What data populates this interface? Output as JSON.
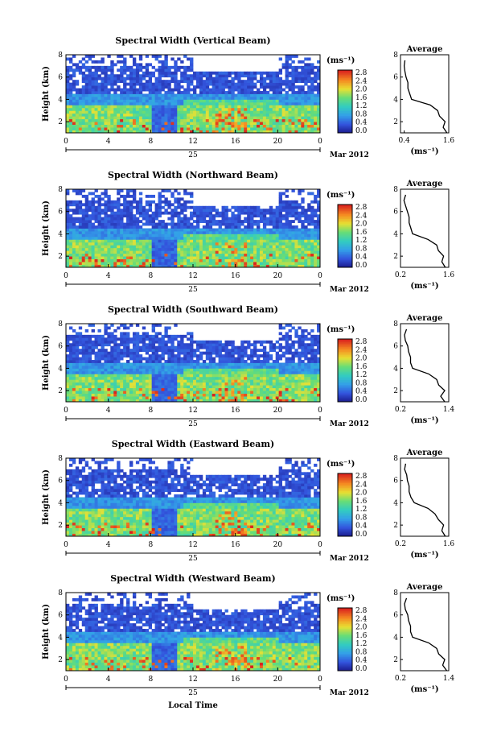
{
  "figure": {
    "xlabel": "Local Time",
    "date_day": "25",
    "date_label": "Mar 2012",
    "ylabel": "Height (km)",
    "cbar_unit": "(ms⁻¹)",
    "avg_title": "Average",
    "avg_xlabel": "(ms⁻¹)"
  },
  "chart_data": [
    {
      "type": "heatmap",
      "title": "Spectral Width (Vertical Beam)",
      "x_ticks": [
        "0",
        "4",
        "8",
        "12",
        "16",
        "20",
        "0"
      ],
      "y_ticks": [
        "2",
        "4",
        "6",
        "8"
      ],
      "xlim": [
        0,
        24
      ],
      "ylim": [
        1,
        8
      ],
      "colorbar_ticks": [
        "0.0",
        "0.4",
        "0.8",
        "1.2",
        "1.6",
        "2.0",
        "2.4",
        "2.8"
      ],
      "colorbar_range": [
        0,
        2.8
      ],
      "average_profile": {
        "x_ticks": [
          "0.4",
          "1.6"
        ],
        "xlim": [
          0.3,
          1.6
        ],
        "y_ticks": [
          "2",
          "4",
          "6",
          "8"
        ],
        "ylim": [
          1,
          8
        ],
        "height_km": [
          1.0,
          1.5,
          2.0,
          2.5,
          3.0,
          3.5,
          4.0,
          4.5,
          5.0,
          5.5,
          6.0,
          6.5,
          7.0,
          7.5
        ],
        "width_ms": [
          1.55,
          1.45,
          1.5,
          1.35,
          1.3,
          1.1,
          0.6,
          0.55,
          0.5,
          0.5,
          0.45,
          0.42,
          0.4,
          0.42
        ]
      }
    },
    {
      "type": "heatmap",
      "title": "Spectral Width (Northward Beam)",
      "x_ticks": [
        "0",
        "4",
        "8",
        "12",
        "16",
        "20",
        "0"
      ],
      "y_ticks": [
        "2",
        "4",
        "6",
        "8"
      ],
      "xlim": [
        0,
        24
      ],
      "ylim": [
        1,
        8
      ],
      "colorbar_ticks": [
        "0.0",
        "0.4",
        "0.8",
        "1.2",
        "1.6",
        "2.0",
        "2.4",
        "2.8"
      ],
      "colorbar_range": [
        0,
        2.8
      ],
      "average_profile": {
        "x_ticks": [
          "0.2",
          "1.6"
        ],
        "xlim": [
          0.2,
          1.6
        ],
        "y_ticks": [
          "2",
          "4",
          "6",
          "8"
        ],
        "ylim": [
          1,
          8
        ],
        "height_km": [
          1.0,
          1.5,
          2.0,
          2.5,
          3.0,
          3.5,
          4.0,
          4.5,
          5.0,
          5.5,
          6.0,
          6.5,
          7.0,
          7.5
        ],
        "width_ms": [
          1.5,
          1.4,
          1.45,
          1.3,
          1.25,
          1.0,
          0.55,
          0.5,
          0.45,
          0.45,
          0.4,
          0.35,
          0.3,
          0.35
        ]
      }
    },
    {
      "type": "heatmap",
      "title": "Spectral Width (Southward Beam)",
      "x_ticks": [
        "0",
        "4",
        "8",
        "12",
        "16",
        "20",
        "0"
      ],
      "y_ticks": [
        "2",
        "4",
        "6",
        "8"
      ],
      "xlim": [
        0,
        24
      ],
      "ylim": [
        1,
        8
      ],
      "colorbar_ticks": [
        "0.0",
        "0.4",
        "0.8",
        "1.2",
        "1.6",
        "2.0",
        "2.4",
        "2.8"
      ],
      "colorbar_range": [
        0,
        2.8
      ],
      "average_profile": {
        "x_ticks": [
          "0.2",
          "1.4"
        ],
        "xlim": [
          0.2,
          1.4
        ],
        "y_ticks": [
          "2",
          "4",
          "6",
          "8"
        ],
        "ylim": [
          1,
          8
        ],
        "height_km": [
          1.0,
          1.5,
          2.0,
          2.5,
          3.0,
          3.5,
          4.0,
          4.5,
          5.0,
          5.5,
          6.0,
          6.5,
          7.0,
          7.5
        ],
        "width_ms": [
          1.3,
          1.2,
          1.3,
          1.15,
          1.1,
          0.9,
          0.5,
          0.45,
          0.45,
          0.4,
          0.38,
          0.32,
          0.3,
          0.35
        ]
      }
    },
    {
      "type": "heatmap",
      "title": "Spectral Width (Eastward Beam)",
      "x_ticks": [
        "0",
        "4",
        "8",
        "12",
        "16",
        "20",
        "0"
      ],
      "y_ticks": [
        "2",
        "4",
        "6",
        "8"
      ],
      "xlim": [
        0,
        24
      ],
      "ylim": [
        1,
        8
      ],
      "colorbar_ticks": [
        "0.0",
        "0.4",
        "0.8",
        "1.2",
        "1.6",
        "2.0",
        "2.4",
        "2.8"
      ],
      "colorbar_range": [
        0,
        2.8
      ],
      "average_profile": {
        "x_ticks": [
          "0.2",
          "1.6"
        ],
        "xlim": [
          0.2,
          1.6
        ],
        "y_ticks": [
          "2",
          "4",
          "6",
          "8"
        ],
        "ylim": [
          1,
          8
        ],
        "height_km": [
          1.0,
          1.5,
          2.0,
          2.5,
          3.0,
          3.5,
          4.0,
          4.5,
          5.0,
          5.5,
          6.0,
          6.5,
          7.0,
          7.5
        ],
        "width_ms": [
          1.5,
          1.4,
          1.45,
          1.3,
          1.2,
          1.0,
          0.6,
          0.5,
          0.45,
          0.45,
          0.4,
          0.38,
          0.32,
          0.35
        ]
      }
    },
    {
      "type": "heatmap",
      "title": "Spectral Width (Westward Beam)",
      "x_ticks": [
        "0",
        "4",
        "8",
        "12",
        "16",
        "20",
        "0"
      ],
      "y_ticks": [
        "2",
        "4",
        "6",
        "8"
      ],
      "xlim": [
        0,
        24
      ],
      "ylim": [
        1,
        8
      ],
      "colorbar_ticks": [
        "0.0",
        "0.4",
        "0.8",
        "1.2",
        "1.6",
        "2.0",
        "2.4",
        "2.8"
      ],
      "colorbar_range": [
        0,
        2.8
      ],
      "average_profile": {
        "x_ticks": [
          "0.2",
          "1.4"
        ],
        "xlim": [
          0.2,
          1.4
        ],
        "y_ticks": [
          "2",
          "4",
          "6",
          "8"
        ],
        "ylim": [
          1,
          8
        ],
        "height_km": [
          1.0,
          1.5,
          2.0,
          2.5,
          3.0,
          3.5,
          4.0,
          4.5,
          5.0,
          5.5,
          6.0,
          6.5,
          7.0,
          7.5
        ],
        "width_ms": [
          1.35,
          1.25,
          1.3,
          1.15,
          1.1,
          0.9,
          0.5,
          0.45,
          0.45,
          0.4,
          0.38,
          0.32,
          0.3,
          0.35
        ]
      }
    }
  ]
}
